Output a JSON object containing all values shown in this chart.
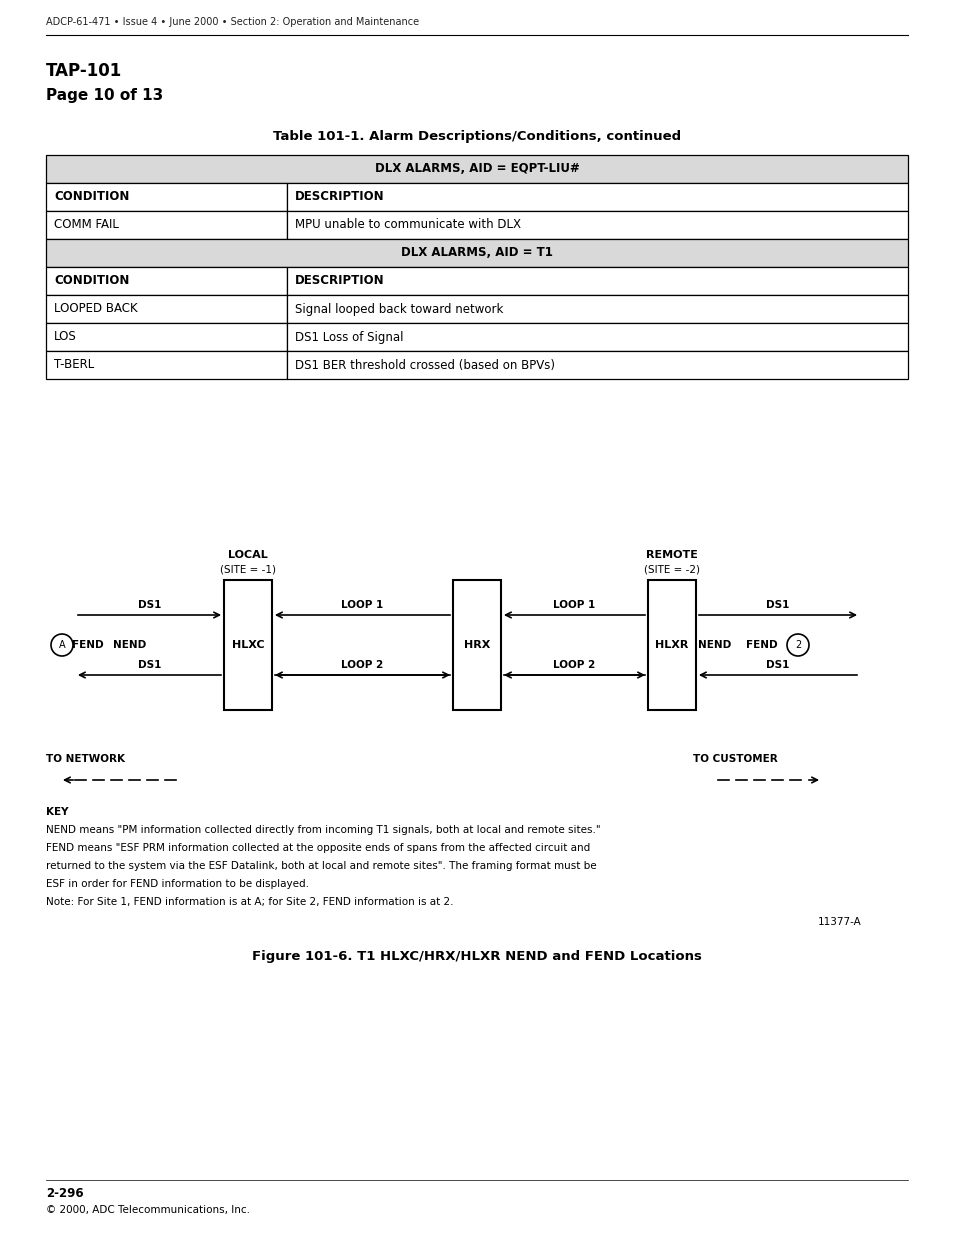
{
  "header_text": "ADCP-61-471 • Issue 4 • June 2000 • Section 2: Operation and Maintenance",
  "tap_title": "TAP-101",
  "tap_subtitle": "Page 10 of 13",
  "table_title": "Table 101-1. Alarm Descriptions/Conditions, continued",
  "table_rows": [
    {
      "type": "header_gray",
      "col1": "DLX ALARMS, AID = EQPT-LIU#",
      "col2": ""
    },
    {
      "type": "header_bold",
      "col1": "CONDITION",
      "col2": "DESCRIPTION"
    },
    {
      "type": "data",
      "col1": "COMM FAIL",
      "col2": "MPU unable to communicate with DLX"
    },
    {
      "type": "header_gray",
      "col1": "DLX ALARMS, AID = T1",
      "col2": ""
    },
    {
      "type": "header_bold",
      "col1": "CONDITION",
      "col2": "DESCRIPTION"
    },
    {
      "type": "data",
      "col1": "LOOPED BACK",
      "col2": "Signal looped back toward network"
    },
    {
      "type": "data",
      "col1": "LOS",
      "col2": "DS1 Loss of Signal"
    },
    {
      "type": "data",
      "col1": "T-BERL",
      "col2": "DS1 BER threshold crossed (based on BPVs)"
    }
  ],
  "table_col_split": 0.28,
  "figure_caption": "Figure 101-6. T1 HLXC/HRX/HLXR NEND and FEND Locations",
  "figure_id": "11377-A",
  "footer_page": "2-296",
  "footer_copy": "© 2000, ADC Telecommunications, Inc.",
  "bg_color": "#ffffff",
  "gray_bg": "#d9d9d9"
}
